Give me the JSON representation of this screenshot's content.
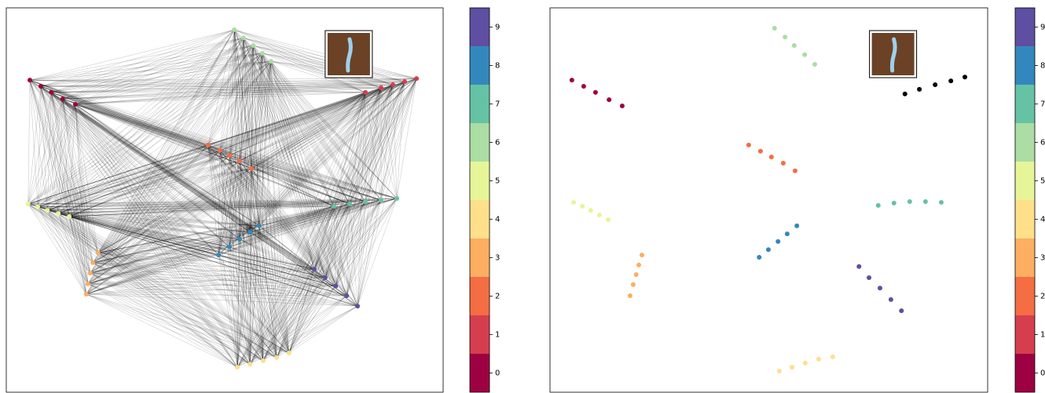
{
  "chart_data": [
    {
      "type": "scatter",
      "links": true,
      "xlim": [
        0,
        100
      ],
      "ylim": [
        0,
        100
      ],
      "series": [
        {
          "color": "#9e0142",
          "x": [
            5.4,
            7.9,
            10.3,
            12.9,
            15.8
          ],
          "y": [
            81.2,
            79.6,
            78.0,
            76.3,
            74.9
          ]
        },
        {
          "color": "#d53e4f",
          "x": [
            82.2,
            85.8,
            88.5,
            91.2,
            93.9
          ],
          "y": [
            78.0,
            79.2,
            80.0,
            80.8,
            81.6
          ]
        },
        {
          "color": "#f46d43",
          "x": [
            46.2,
            48.9,
            51.1,
            53.4,
            56.1
          ],
          "y": [
            64.3,
            62.9,
            61.6,
            60.2,
            58.2
          ]
        },
        {
          "color": "#fdae61",
          "x": [
            21.0,
            19.8,
            19.2,
            18.7,
            18.3
          ],
          "y": [
            36.3,
            33.7,
            31.0,
            28.2,
            25.5
          ]
        },
        {
          "color": "#fee08b",
          "x": [
            52.9,
            55.8,
            58.8,
            61.9,
            64.7
          ],
          "y": [
            6.5,
            7.3,
            8.2,
            9.0,
            10.2
          ]
        },
        {
          "color": "#e6f598",
          "x": [
            5.0,
            7.2,
            9.4,
            11.9,
            14.4
          ],
          "y": [
            49.0,
            48.2,
            47.3,
            46.5,
            45.7
          ]
        },
        {
          "color": "#abdda4",
          "x": [
            52.2,
            54.3,
            56.5,
            58.6,
            60.6
          ],
          "y": [
            94.3,
            92.2,
            90.2,
            88.2,
            86.1
          ]
        },
        {
          "color": "#66c2a5",
          "x": [
            75.0,
            78.6,
            82.2,
            85.8,
            89.4
          ],
          "y": [
            48.4,
            49.0,
            49.6,
            50.0,
            50.4
          ]
        },
        {
          "color": "#3288bd",
          "x": [
            48.6,
            51.1,
            53.4,
            55.8,
            57.9
          ],
          "y": [
            35.7,
            37.8,
            39.8,
            41.6,
            43.3
          ]
        },
        {
          "color": "#5e4fa2",
          "x": [
            70.5,
            73.0,
            75.4,
            77.9,
            80.4
          ],
          "y": [
            32.0,
            29.8,
            27.6,
            25.1,
            22.4
          ]
        }
      ],
      "colorbar": {
        "ticks": [
          0,
          1,
          2,
          3,
          4,
          5,
          6,
          7,
          8,
          9
        ],
        "colors": [
          "#9e0142",
          "#d53e4f",
          "#f46d43",
          "#fdae61",
          "#fee08b",
          "#e6f598",
          "#abdda4",
          "#66c2a5",
          "#3288bd",
          "#5e4fa2"
        ]
      }
    },
    {
      "type": "scatter",
      "links": false,
      "xlim": [
        0,
        100
      ],
      "ylim": [
        0,
        100
      ],
      "series": [
        {
          "color": "#9e0142",
          "x": [
            5.0,
            7.7,
            10.4,
            13.5,
            16.5
          ],
          "y": [
            81.2,
            79.6,
            78.0,
            76.1,
            74.5
          ]
        },
        {
          "color": "#000000",
          "x": [
            81.1,
            84.4,
            88.0,
            91.6,
            94.8
          ],
          "y": [
            77.6,
            78.8,
            80.0,
            81.0,
            82.0
          ]
        },
        {
          "color": "#f46d43",
          "x": [
            45.4,
            48.1,
            50.6,
            53.3,
            56.0
          ],
          "y": [
            64.3,
            62.7,
            61.2,
            59.6,
            57.6
          ]
        },
        {
          "color": "#fdae61",
          "x": [
            21.0,
            20.3,
            19.7,
            19.0,
            18.3
          ],
          "y": [
            35.7,
            33.1,
            30.6,
            28.0,
            25.1
          ]
        },
        {
          "color": "#fee08b",
          "x": [
            52.4,
            55.3,
            58.3,
            61.4,
            64.6
          ],
          "y": [
            5.5,
            6.5,
            7.6,
            8.6,
            9.2
          ]
        },
        {
          "color": "#e6f598",
          "x": [
            5.4,
            7.4,
            9.3,
            11.3,
            13.3
          ],
          "y": [
            49.4,
            48.4,
            47.3,
            46.1,
            44.9
          ]
        },
        {
          "color": "#abdda4",
          "x": [
            51.3,
            53.7,
            55.8,
            58.2,
            60.5
          ],
          "y": [
            94.7,
            92.4,
            90.2,
            87.8,
            85.3
          ]
        },
        {
          "color": "#66c2a5",
          "x": [
            75.0,
            78.6,
            82.2,
            85.8,
            89.4
          ],
          "y": [
            48.6,
            49.2,
            49.6,
            49.6,
            49.4
          ]
        },
        {
          "color": "#3288bd",
          "x": [
            47.8,
            49.9,
            52.1,
            54.2,
            56.4
          ],
          "y": [
            35.1,
            37.1,
            39.2,
            41.2,
            43.3
          ]
        },
        {
          "color": "#5e4fa2",
          "x": [
            70.6,
            72.9,
            75.4,
            77.9,
            80.3
          ],
          "y": [
            32.7,
            29.8,
            27.1,
            24.1,
            21.2
          ]
        }
      ],
      "colorbar": {
        "ticks": [
          0,
          1,
          2,
          3,
          4,
          5,
          6,
          7,
          8,
          9
        ],
        "colors": [
          "#9e0142",
          "#d53e4f",
          "#f46d43",
          "#fdae61",
          "#fee08b",
          "#e6f598",
          "#abdda4",
          "#66c2a5",
          "#3288bd",
          "#5e4fa2"
        ]
      }
    }
  ]
}
